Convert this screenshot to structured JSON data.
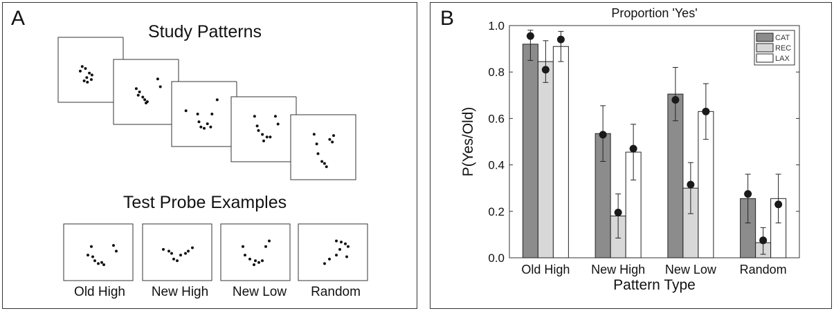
{
  "panel_a": {
    "letter": "A",
    "study_title": "Study Patterns",
    "test_title": "Test Probe Examples",
    "probes": [
      "Old High",
      "New High",
      "New Low",
      "Random"
    ]
  },
  "panel_b": {
    "letter": "B"
  },
  "chart_data": {
    "type": "bar",
    "title": "Proportion 'Yes'",
    "xlabel": "Pattern Type",
    "ylabel": "P(Yes/Old)",
    "ylim": [
      0,
      1.0
    ],
    "yticks": [
      "0.0",
      "0.2",
      "0.4",
      "0.6",
      "0.8",
      "1.0"
    ],
    "categories": [
      "Old High",
      "New High",
      "New Low",
      "Random"
    ],
    "legend_position": "top-right",
    "series": [
      {
        "name": "CAT",
        "color": "#8c8c8c",
        "values": [
          0.92,
          0.535,
          0.705,
          0.255
        ],
        "err_low": [
          0.85,
          0.415,
          0.59,
          0.15
        ],
        "err_high": [
          0.98,
          0.655,
          0.82,
          0.36
        ],
        "markers": [
          0.955,
          0.53,
          0.68,
          0.275
        ]
      },
      {
        "name": "REC",
        "color": "#d8d8d8",
        "values": [
          0.845,
          0.18,
          0.3,
          0.065
        ],
        "err_low": [
          0.755,
          0.085,
          0.19,
          0.015
        ],
        "err_high": [
          0.935,
          0.275,
          0.41,
          0.13
        ],
        "markers": [
          0.81,
          0.195,
          0.315,
          0.075
        ]
      },
      {
        "name": "LAX",
        "color": "#ffffff",
        "values": [
          0.91,
          0.455,
          0.63,
          0.255
        ],
        "err_low": [
          0.845,
          0.335,
          0.51,
          0.15
        ],
        "err_high": [
          0.975,
          0.575,
          0.75,
          0.36
        ],
        "markers": [
          0.94,
          0.47,
          0.63,
          0.23
        ]
      }
    ]
  }
}
